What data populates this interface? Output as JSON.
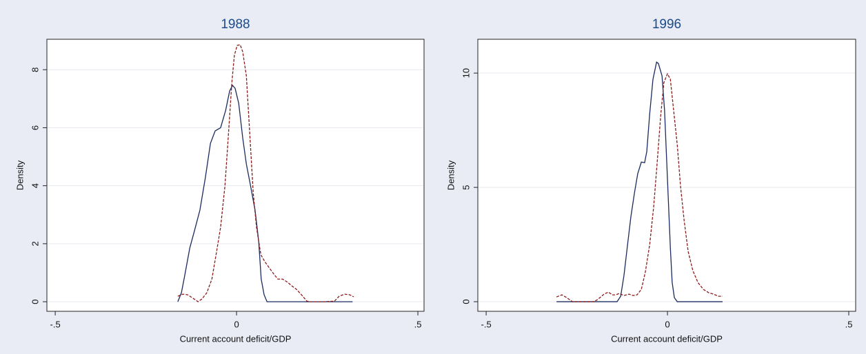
{
  "chart_data": [
    {
      "type": "line",
      "title": "1988",
      "xlabel": "Current account deficit/GDP",
      "ylabel": "Density",
      "xlim": [
        -0.523,
        0.517
      ],
      "ylim": [
        -0.33,
        9.05
      ],
      "xticks": [
        {
          "value": -0.5,
          "label": "-.5"
        },
        0,
        {
          "value": 0.5,
          "label": ".5"
        }
      ],
      "yticks": [
        0,
        2,
        4,
        6,
        8
      ],
      "grid": true,
      "series": [
        {
          "color": "#1a2a5e",
          "dash": "solid",
          "x": [
            -0.162,
            -0.152,
            -0.143,
            -0.129,
            -0.116,
            -0.101,
            -0.086,
            -0.072,
            -0.059,
            -0.044,
            -0.03,
            -0.019,
            -0.011,
            -0.004,
            0.006,
            0.017,
            0.027,
            0.038,
            0.051,
            0.061,
            0.068,
            0.076,
            0.084,
            0.11,
            0.2,
            0.3,
            0.32
          ],
          "values": [
            0,
            0.31,
            0.9,
            1.85,
            2.45,
            3.16,
            4.28,
            5.46,
            5.89,
            6.0,
            6.6,
            7.27,
            7.46,
            7.36,
            6.84,
            5.65,
            4.75,
            4.04,
            3.16,
            2.09,
            0.78,
            0.24,
            0,
            0,
            0,
            0,
            0
          ]
        },
        {
          "color": "#8b1a1a",
          "dash": "dashed",
          "x": [
            -0.162,
            -0.148,
            -0.135,
            -0.12,
            -0.106,
            -0.095,
            -0.082,
            -0.068,
            -0.055,
            -0.044,
            -0.032,
            -0.023,
            -0.013,
            -0.006,
            0.002,
            0.01,
            0.017,
            0.027,
            0.036,
            0.046,
            0.055,
            0.067,
            0.078,
            0.089,
            0.103,
            0.114,
            0.127,
            0.141,
            0.152,
            0.165,
            0.179,
            0.194,
            0.203,
            0.241,
            0.27,
            0.283,
            0.298,
            0.312,
            0.323
          ],
          "values": [
            0.19,
            0.26,
            0.24,
            0.12,
            0,
            0.1,
            0.31,
            0.78,
            1.73,
            2.57,
            3.99,
            5.65,
            7.55,
            8.5,
            8.84,
            8.86,
            8.62,
            7.79,
            5.89,
            3.75,
            2.57,
            1.62,
            1.38,
            1.19,
            0.95,
            0.78,
            0.78,
            0.67,
            0.55,
            0.43,
            0.24,
            0.02,
            0,
            0,
            0.02,
            0.19,
            0.26,
            0.24,
            0.17
          ]
        }
      ]
    },
    {
      "type": "line",
      "title": "1996",
      "xlabel": "Current account deficit/GDP",
      "ylabel": "Density",
      "xlim": [
        -0.523,
        0.519
      ],
      "ylim": [
        -0.42,
        11.48
      ],
      "xticks": [
        {
          "value": -0.5,
          "label": "-.5"
        },
        0,
        {
          "value": 0.5,
          "label": ".5"
        }
      ],
      "yticks": [
        0,
        5,
        10
      ],
      "grid": true,
      "series": [
        {
          "color": "#1a2a5e",
          "dash": "solid",
          "x": [
            -0.306,
            -0.224,
            -0.139,
            -0.129,
            -0.12,
            -0.11,
            -0.101,
            -0.091,
            -0.082,
            -0.072,
            -0.063,
            -0.057,
            -0.049,
            -0.04,
            -0.03,
            -0.025,
            -0.015,
            -0.008,
            0,
            0.008,
            0.013,
            0.019,
            0.027,
            0.061,
            0.152
          ],
          "values": [
            0,
            0,
            0,
            0.24,
            1.14,
            2.5,
            3.7,
            4.76,
            5.6,
            6.11,
            6.08,
            6.57,
            8.22,
            9.73,
            10.48,
            10.42,
            9.88,
            8.37,
            5.36,
            2.35,
            0.84,
            0.18,
            0,
            0,
            0
          ]
        },
        {
          "color": "#8b1a1a",
          "dash": "dashed",
          "x": [
            -0.306,
            -0.291,
            -0.278,
            -0.262,
            -0.205,
            -0.196,
            -0.186,
            -0.175,
            -0.163,
            -0.152,
            -0.143,
            -0.133,
            -0.12,
            -0.106,
            -0.095,
            -0.084,
            -0.072,
            -0.061,
            -0.049,
            -0.038,
            -0.029,
            -0.019,
            -0.01,
            0,
            0.008,
            0.017,
            0.027,
            0.036,
            0.046,
            0.057,
            0.07,
            0.084,
            0.099,
            0.114,
            0.127,
            0.141,
            0.152
          ],
          "values": [
            0.21,
            0.3,
            0.18,
            0,
            0,
            0.06,
            0.18,
            0.33,
            0.42,
            0.3,
            0.3,
            0.36,
            0.27,
            0.33,
            0.27,
            0.3,
            0.54,
            1.3,
            2.5,
            4.16,
            5.96,
            8.07,
            9.58,
            9.97,
            9.73,
            8.37,
            6.87,
            5.06,
            3.55,
            2.2,
            1.36,
            0.84,
            0.54,
            0.39,
            0.33,
            0.24,
            0.24
          ]
        }
      ]
    }
  ]
}
